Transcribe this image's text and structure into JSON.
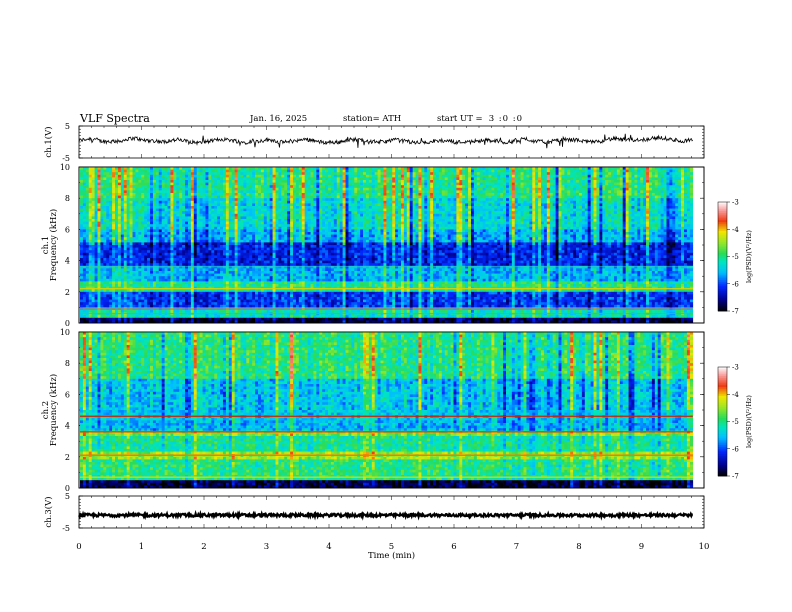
{
  "header": {
    "title": "VLF  Spectra",
    "date": "Jan. 16, 2025",
    "station": "station= ATH",
    "start_label": "start  UT  =",
    "start_value": "3  :0  :0"
  },
  "chart_data": [
    {
      "type": "line",
      "name": "ch1-waveform",
      "ylabel": "ch.1(V)",
      "ylim": [
        -5,
        5
      ],
      "yticks": [
        "5",
        "-5"
      ],
      "xlim": [
        0,
        10
      ],
      "x_end": 9.82,
      "baseline": 0.3,
      "color": "#000000"
    },
    {
      "type": "heatmap",
      "name": "ch1-spectrogram",
      "ylabel": "ch.1\nFrequency  (kHz)",
      "ylim": [
        0,
        10
      ],
      "yticks": [
        "0",
        "2",
        "4",
        "6",
        "8",
        "10"
      ],
      "xlim": [
        0,
        10
      ],
      "x_end": 9.82,
      "colorbar": {
        "label": "log(PSD)(V²/Hz)",
        "range": [
          -7,
          -3
        ],
        "ticks": [
          "-3",
          "-4",
          "-5",
          "-6",
          "-7"
        ]
      }
    },
    {
      "type": "heatmap",
      "name": "ch2-spectrogram",
      "ylabel": "ch.2\nFrequency  (kHz)",
      "ylim": [
        0,
        10
      ],
      "yticks": [
        "0",
        "2",
        "4",
        "6",
        "8",
        "10"
      ],
      "xlim": [
        0,
        10
      ],
      "x_end": 9.82,
      "colorbar": {
        "label": "log(PSD)(V²/Hz)",
        "range": [
          -7,
          -3
        ],
        "ticks": [
          "-3",
          "-4",
          "-5",
          "-6",
          "-7"
        ]
      }
    },
    {
      "type": "line",
      "name": "ch3-waveform",
      "ylabel": "ch.3(V)",
      "ylim": [
        -5,
        5
      ],
      "yticks": [
        "5",
        "-5"
      ],
      "xlim": [
        0,
        10
      ],
      "x_end": 9.82,
      "baseline": -1.0,
      "color": "#000000"
    }
  ],
  "xaxis": {
    "label": "Time  (min)",
    "ticks": [
      "0",
      "1",
      "2",
      "3",
      "4",
      "5",
      "6",
      "7",
      "8",
      "9",
      "10"
    ]
  }
}
